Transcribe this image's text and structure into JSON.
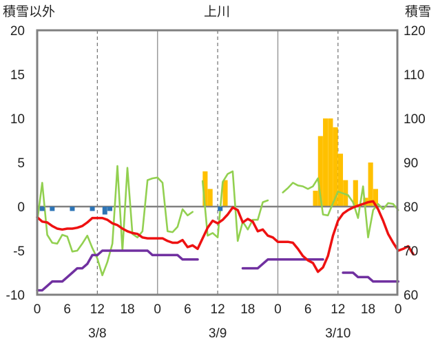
{
  "header": {
    "left_label": "積雪以外",
    "station": "上川",
    "right_label": "積雪"
  },
  "chart_data": {
    "type": "line",
    "y_left_ticks": [
      "20",
      "15",
      "10",
      "5",
      "0",
      "-5",
      "-10"
    ],
    "y_right_ticks": [
      "120",
      "110",
      "100",
      "90",
      "80",
      "70",
      "60"
    ],
    "ylim_left": [
      -10,
      20
    ],
    "ylim_right": [
      60,
      120
    ],
    "x_ticks": [
      "0",
      "6",
      "12",
      "18",
      "0",
      "6",
      "12",
      "18",
      "0",
      "6",
      "12",
      "18",
      "0"
    ],
    "x_tick_hours": [
      0,
      6,
      12,
      18,
      24,
      30,
      36,
      42,
      48,
      54,
      60,
      66,
      72
    ],
    "dates": [
      "3/8",
      "3/9",
      "3/10"
    ],
    "date_hours": [
      12,
      36,
      60
    ],
    "xlim": [
      0,
      72
    ],
    "grid": "dashed vertical at 12h, solid at day boundaries",
    "colors": {
      "temperature": "#ee1111",
      "green_series": "#92d050",
      "purple_series": "#7030a0",
      "precip": "#ffc000",
      "blue_marks": "#2e75b6"
    },
    "series": [
      {
        "key": "red",
        "color": "#ee1111",
        "axis": "left",
        "segments": [
          [
            [
              0,
              -1.2
            ],
            [
              1,
              -1.7
            ],
            [
              2,
              -1.8
            ],
            [
              3,
              -2.2
            ],
            [
              4,
              -2.5
            ],
            [
              5,
              -2.6
            ],
            [
              6,
              -2.5
            ],
            [
              7,
              -2.5
            ],
            [
              8,
              -2.4
            ],
            [
              9,
              -2.2
            ],
            [
              10,
              -1.8
            ],
            [
              11,
              -1.3
            ],
            [
              12,
              -1.3
            ],
            [
              13,
              -1.3
            ],
            [
              14,
              -1.5
            ],
            [
              15,
              -1.9
            ],
            [
              16,
              -2.1
            ],
            [
              17,
              -2.5
            ],
            [
              18,
              -2.8
            ],
            [
              19,
              -3.0
            ],
            [
              20,
              -3.1
            ],
            [
              21,
              -3.5
            ],
            [
              22,
              -3.6
            ],
            [
              23,
              -3.6
            ],
            [
              24,
              -3.6
            ],
            [
              25,
              -3.6
            ],
            [
              26,
              -3.9
            ],
            [
              27,
              -4.1
            ],
            [
              28,
              -4.1
            ],
            [
              29,
              -3.8
            ],
            [
              30,
              -4.6
            ],
            [
              31,
              -4.4
            ],
            [
              32,
              -4.8
            ],
            [
              33,
              -3.6
            ],
            [
              34,
              -2.4
            ],
            [
              35,
              -1.6
            ],
            [
              36,
              -1.9
            ],
            [
              37,
              -1.5
            ],
            [
              38,
              -0.9
            ],
            [
              39,
              -0.1
            ],
            [
              40,
              -0.4
            ],
            [
              41,
              -1.8
            ],
            [
              42,
              -1.4
            ],
            [
              43,
              -1.7
            ],
            [
              44,
              -2.8
            ],
            [
              45,
              -2.6
            ],
            [
              46,
              -3.3
            ],
            [
              47,
              -3.5
            ],
            [
              48,
              -4.0
            ],
            [
              49,
              -4.0
            ],
            [
              50,
              -4.0
            ],
            [
              51,
              -4.1
            ],
            [
              52,
              -4.8
            ],
            [
              53,
              -5.6
            ],
            [
              54,
              -6.1
            ],
            [
              55,
              -6.4
            ],
            [
              56,
              -7.4
            ],
            [
              57,
              -6.9
            ],
            [
              58,
              -5.6
            ],
            [
              59,
              -3.3
            ],
            [
              60,
              -1.6
            ],
            [
              61,
              -0.8
            ],
            [
              62,
              -0.4
            ],
            [
              63,
              -0.1
            ],
            [
              64,
              0.1
            ],
            [
              65,
              0.3
            ],
            [
              66,
              0.5
            ],
            [
              67,
              0.6
            ],
            [
              68,
              -0.3
            ],
            [
              69,
              -1.6
            ],
            [
              70,
              -3.1
            ],
            [
              71,
              -4.1
            ],
            [
              72,
              -5.0
            ],
            [
              73,
              -4.8
            ],
            [
              74,
              -4.5
            ],
            [
              75,
              -5.4
            ]
          ]
        ]
      },
      {
        "key": "green",
        "color": "#92d050",
        "axis": "left",
        "segments": [
          [
            [
              0,
              -1.7
            ],
            [
              1,
              2.7
            ],
            [
              2,
              -3.2
            ],
            [
              3,
              -4.1
            ],
            [
              4,
              -4.2
            ],
            [
              5,
              -3.2
            ],
            [
              6,
              -3.4
            ],
            [
              7,
              -5.1
            ],
            [
              8,
              -5.0
            ],
            [
              9,
              -4.2
            ],
            [
              10,
              -3.3
            ],
            [
              11,
              -4.7
            ],
            [
              12,
              -5.9
            ],
            [
              13,
              -7.8
            ],
            [
              14,
              -6.3
            ],
            [
              15,
              -4.2
            ],
            [
              16,
              4.6
            ],
            [
              17,
              -5.0
            ],
            [
              18,
              4.4
            ],
            [
              19,
              -3.1
            ],
            [
              20,
              -3.5
            ],
            [
              21,
              -2.8
            ],
            [
              22,
              3.0
            ],
            [
              23,
              3.2
            ],
            [
              24,
              3.3
            ],
            [
              25,
              2.7
            ],
            [
              26,
              -2.8
            ],
            [
              27,
              -2.9
            ],
            [
              28,
              -2.3
            ],
            [
              29,
              -0.3
            ],
            [
              30,
              -1.0
            ],
            [
              31,
              -0.6
            ]
          ],
          [
            [
              33,
              2.9
            ],
            [
              34,
              -3.3
            ],
            [
              35,
              -3.0
            ],
            [
              36,
              -3.5
            ],
            [
              37,
              2.8
            ],
            [
              38,
              3.7
            ],
            [
              39,
              4.0
            ],
            [
              40,
              -3.9
            ],
            [
              41,
              -1.7
            ],
            [
              42,
              -2.6
            ],
            [
              43,
              -1.5
            ],
            [
              44,
              -1.5
            ],
            [
              45,
              0.5
            ],
            [
              46,
              0.7
            ]
          ],
          [
            [
              49,
              1.6
            ],
            [
              50,
              2.1
            ],
            [
              51,
              2.7
            ],
            [
              52,
              2.4
            ],
            [
              53,
              2.3
            ],
            [
              54,
              2.0
            ],
            [
              55,
              2.3
            ],
            [
              56,
              3.2
            ],
            [
              57,
              -0.9
            ],
            [
              58,
              -1.0
            ],
            [
              59,
              0.4
            ],
            [
              60,
              1.7
            ],
            [
              61,
              1.5
            ],
            [
              62,
              1.3
            ],
            [
              63,
              0.5
            ],
            [
              64,
              -1.3
            ],
            [
              65,
              2.3
            ],
            [
              66,
              -3.5
            ],
            [
              67,
              -0.4
            ],
            [
              68,
              0.3
            ],
            [
              69,
              -0.3
            ],
            [
              70,
              0.4
            ],
            [
              71,
              0.3
            ],
            [
              72,
              -0.4
            ]
          ]
        ]
      },
      {
        "key": "purple",
        "color": "#7030a0",
        "axis": "left",
        "segments": [
          [
            [
              0,
              -9.5
            ],
            [
              1,
              -9.5
            ],
            [
              2,
              -9.0
            ],
            [
              3,
              -8.5
            ],
            [
              4,
              -8.5
            ],
            [
              5,
              -8.5
            ],
            [
              6,
              -8.0
            ],
            [
              7,
              -7.5
            ],
            [
              8,
              -7.0
            ],
            [
              9,
              -7.0
            ],
            [
              10,
              -6.5
            ],
            [
              11,
              -5.5
            ],
            [
              12,
              -5.5
            ],
            [
              13,
              -5.0
            ],
            [
              14,
              -5.0
            ],
            [
              15,
              -5.0
            ],
            [
              16,
              -5.0
            ],
            [
              17,
              -5.0
            ],
            [
              18,
              -5.0
            ],
            [
              19,
              -5.0
            ],
            [
              20,
              -5.0
            ],
            [
              21,
              -5.0
            ],
            [
              22,
              -5.0
            ],
            [
              23,
              -5.5
            ],
            [
              24,
              -5.5
            ],
            [
              25,
              -5.5
            ],
            [
              26,
              -5.5
            ],
            [
              27,
              -5.5
            ],
            [
              28,
              -5.5
            ],
            [
              29,
              -6.0
            ],
            [
              30,
              -6.0
            ],
            [
              31,
              -6.0
            ],
            [
              32,
              -6.0
            ]
          ],
          [
            [
              41,
              -7.0
            ],
            [
              42,
              -7.0
            ],
            [
              43,
              -7.0
            ],
            [
              44,
              -7.0
            ],
            [
              45,
              -6.5
            ],
            [
              46,
              -6.0
            ],
            [
              47,
              -6.0
            ],
            [
              48,
              -6.0
            ],
            [
              49,
              -6.0
            ],
            [
              50,
              -6.0
            ],
            [
              51,
              -6.0
            ],
            [
              52,
              -6.0
            ],
            [
              53,
              -6.0
            ],
            [
              54,
              -6.0
            ],
            [
              55,
              -6.0
            ],
            [
              56,
              -6.0
            ],
            [
              57,
              -6.0
            ]
          ],
          [
            [
              61,
              -7.5
            ],
            [
              62,
              -7.5
            ],
            [
              63,
              -7.5
            ],
            [
              64,
              -8.0
            ],
            [
              65,
              -8.0
            ],
            [
              66,
              -8.0
            ],
            [
              67,
              -8.5
            ],
            [
              68,
              -8.5
            ],
            [
              69,
              -8.5
            ],
            [
              70,
              -8.5
            ],
            [
              71,
              -8.5
            ],
            [
              72,
              -8.5
            ]
          ]
        ]
      }
    ],
    "bars": {
      "name": "precip",
      "color": "#ffc000",
      "axis": "left",
      "hours": [
        33.5,
        34.5,
        37.5,
        55.5,
        56.5,
        57.5,
        58.5,
        59.5,
        60.5,
        61.5,
        63.5,
        65.5,
        66.5,
        67.5
      ],
      "values": [
        4.0,
        2.0,
        3.0,
        1.8,
        8.0,
        10.0,
        10.0,
        9.0,
        6.0,
        3.0,
        3.0,
        1.0,
        5.0,
        2.0
      ]
    },
    "marks": {
      "name": "blue",
      "color": "#2e75b6",
      "axis": "left",
      "hours": [
        1,
        3,
        7,
        11,
        13.5,
        14.5,
        36.5
      ],
      "values": [
        -0.5,
        -0.5,
        -0.5,
        -0.5,
        -0.9,
        -0.5,
        -0.5
      ]
    }
  }
}
